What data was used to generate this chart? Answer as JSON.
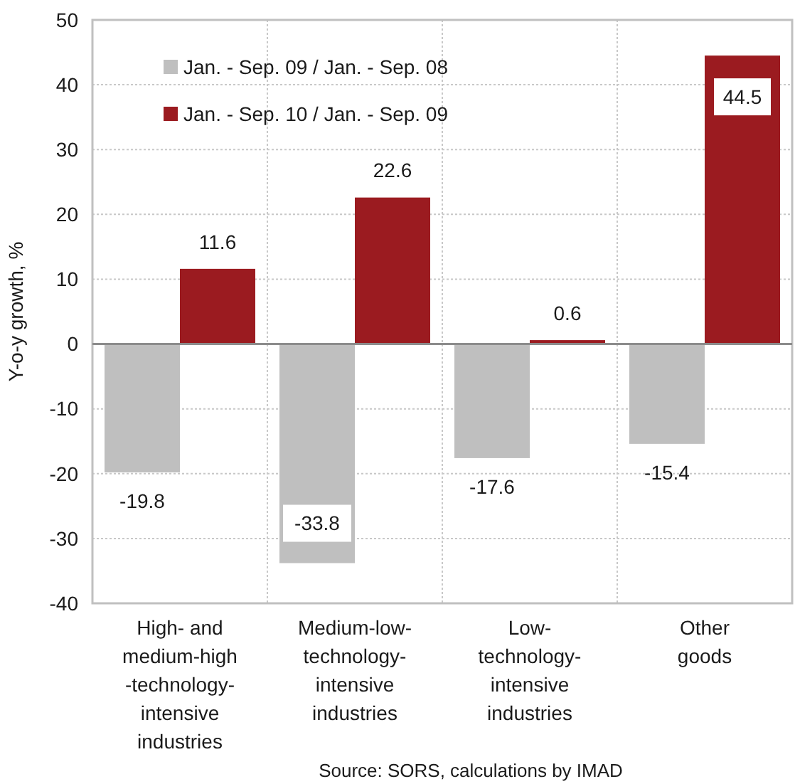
{
  "chart_data": {
    "type": "bar",
    "ylabel": "Y-o-y growth, %",
    "categories": [
      "High- and\nmedium-high\n-technology-\nintensive\nindustries",
      "Medium-low-\ntechnology-\nintensive\nindustries",
      "Low-\ntechnology-\nintensive\nindustries",
      "Other\ngoods"
    ],
    "series": [
      {
        "name": "Jan. - Sep. 09 / Jan. - Sep. 08",
        "color": "#bfbfbf",
        "values": [
          -19.8,
          -33.8,
          -17.6,
          -15.4
        ]
      },
      {
        "name": "Jan. - Sep. 10 / Jan. - Sep. 09",
        "color": "#9b1b20",
        "values": [
          11.6,
          22.6,
          0.6,
          44.5
        ]
      }
    ],
    "ylim": [
      -40,
      50
    ],
    "yticks": [
      -40,
      -30,
      -20,
      -10,
      0,
      10,
      20,
      30,
      40,
      50
    ],
    "grid": true,
    "legend": "top left",
    "data_labels": true,
    "annotations": [
      "Source: SORS, calculations by IMAD"
    ]
  }
}
